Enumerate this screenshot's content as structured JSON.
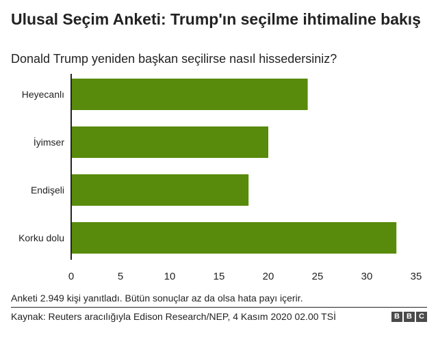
{
  "header": {
    "title": "Ulusal Seçim Anketi: Trump'ın seçilme ihtimaline bakış",
    "subtitle": "Donald Trump yeniden başkan seçilirse nasıl hissedersiniz?"
  },
  "chart_data": {
    "type": "bar",
    "orientation": "horizontal",
    "categories": [
      "Heyecanlı",
      "İyimser",
      "Endişeli",
      "Korku dolu"
    ],
    "values": [
      24,
      20,
      18,
      33
    ],
    "x_ticks": [
      0,
      5,
      10,
      15,
      20,
      25,
      30,
      35
    ],
    "xlim": [
      0,
      35
    ],
    "grid": false,
    "bar_color": "#588a0b",
    "axis_color": "#222222"
  },
  "footer": {
    "note": "Anketi 2.949 kişi yanıtladı. Bütün sonuçlar az da olsa hata payı içerir.",
    "source": "Kaynak: Reuters aracılığıyla Edison Research/NEP, 4 Kasım 2020 02.00 TSİ",
    "logo_letters": [
      "B",
      "B",
      "C"
    ]
  }
}
